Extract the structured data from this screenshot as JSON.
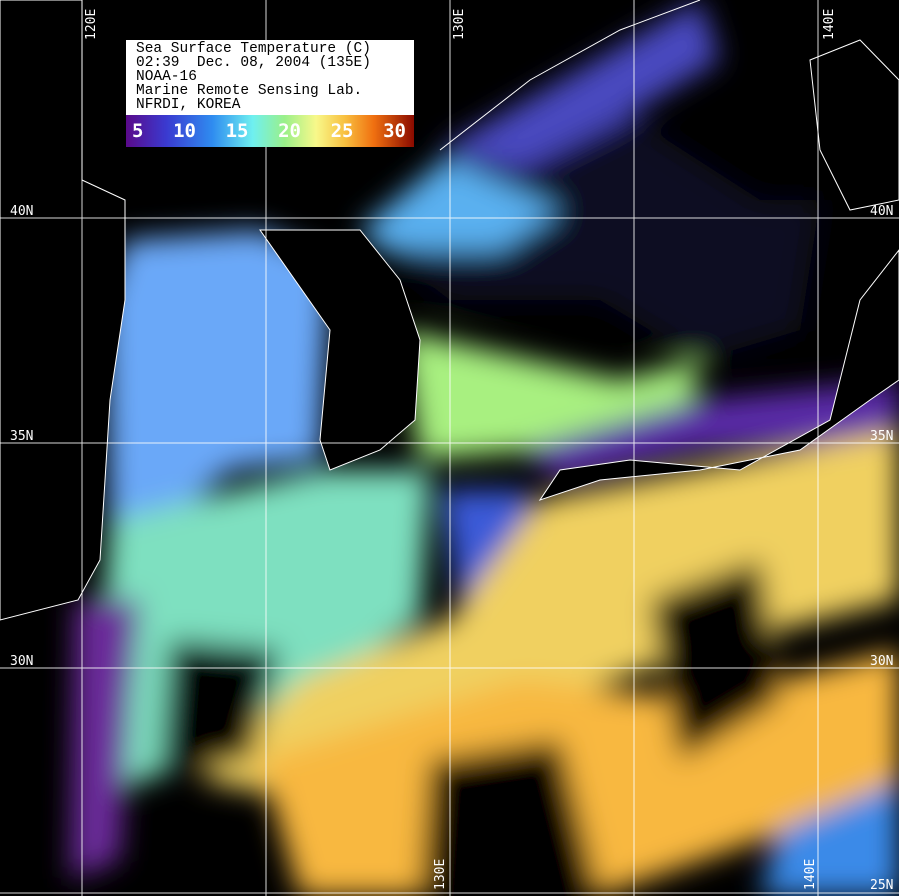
{
  "legend": {
    "lines": [
      "Sea Surface Temperature (C)",
      "02:39  Dec. 08, 2004 (135E)",
      "NOAA-16",
      "Marine Remote Sensing Lab.",
      "NFRDI, KOREA"
    ],
    "colorbar_ticks": [
      "5",
      "10",
      "15",
      "20",
      "25",
      "30"
    ],
    "colors": [
      "#5a0a8a",
      "#3a3ad0",
      "#2f8cf0",
      "#6ff0f0",
      "#9af08a",
      "#f8f88a",
      "#f8c040",
      "#f07010",
      "#8a0a00"
    ]
  },
  "grid": {
    "lon_labels_top": [
      "120E",
      "130E",
      "140E"
    ],
    "lon_labels_bottom": [
      "130E",
      "140E"
    ],
    "lat_labels_left": [
      "40N",
      "35N",
      "30N"
    ],
    "lat_labels_right": [
      "40N",
      "35N",
      "30N",
      "25N"
    ]
  }
}
